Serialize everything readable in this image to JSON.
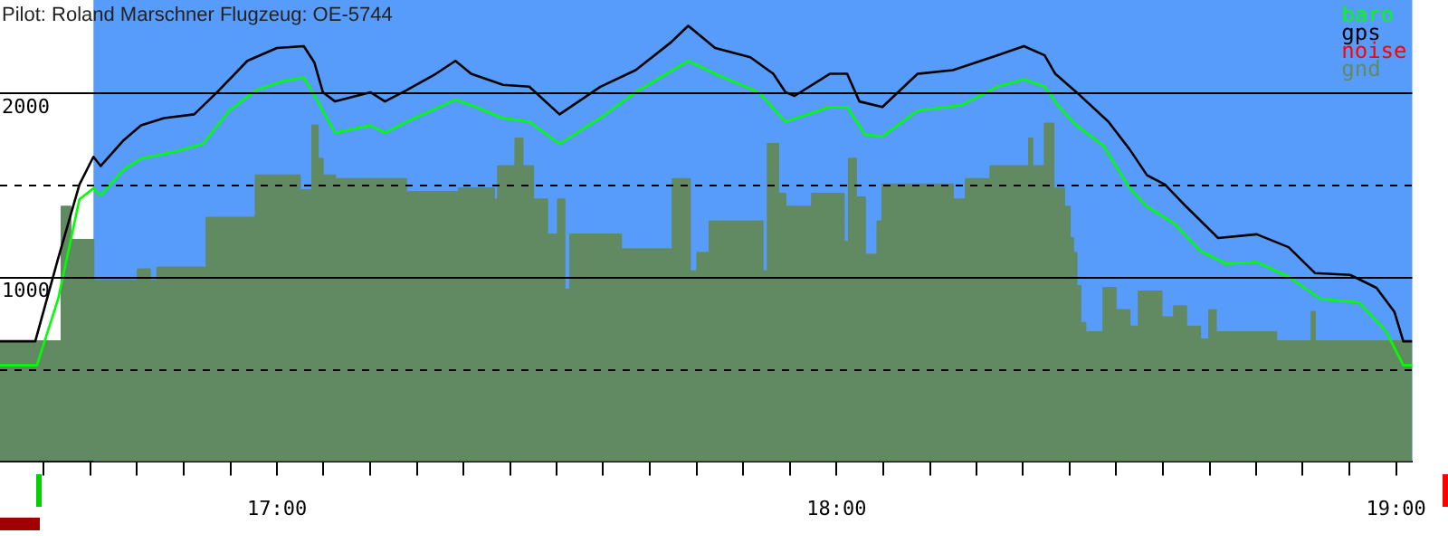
{
  "chart_data": {
    "type": "line",
    "title": "Pilot: Roland Marschner Flugzeug: OE-5744",
    "xlim": [
      16.505,
      19.029
    ],
    "xticks": [
      {
        "value": 16.583,
        "label": null
      },
      {
        "value": 16.667,
        "label": null
      },
      {
        "value": 16.75,
        "label": null
      },
      {
        "value": 16.833,
        "label": null
      },
      {
        "value": 16.917,
        "label": null
      },
      {
        "value": 17,
        "label": "17:00"
      },
      {
        "value": 17.083,
        "label": null
      },
      {
        "value": 17.167,
        "label": null
      },
      {
        "value": 17.25,
        "label": null
      },
      {
        "value": 17.333,
        "label": null
      },
      {
        "value": 17.417,
        "label": null
      },
      {
        "value": 17.5,
        "label": null
      },
      {
        "value": 17.583,
        "label": null
      },
      {
        "value": 17.667,
        "label": null
      },
      {
        "value": 17.75,
        "label": null
      },
      {
        "value": 17.833,
        "label": null
      },
      {
        "value": 17.917,
        "label": null
      },
      {
        "value": 18,
        "label": "18:00"
      },
      {
        "value": 18.083,
        "label": null
      },
      {
        "value": 18.167,
        "label": null
      },
      {
        "value": 18.25,
        "label": null
      },
      {
        "value": 18.333,
        "label": null
      },
      {
        "value": 18.417,
        "label": null
      },
      {
        "value": 18.5,
        "label": null
      },
      {
        "value": 18.583,
        "label": null
      },
      {
        "value": 18.667,
        "label": null
      },
      {
        "value": 18.75,
        "label": null
      },
      {
        "value": 18.833,
        "label": null
      },
      {
        "value": 18.917,
        "label": null
      },
      {
        "value": 19,
        "label": "19:00"
      }
    ],
    "ylim": [
      0,
      2500
    ],
    "yticks": [
      {
        "value": 500,
        "label": null
      },
      1000,
      {
        "value": 1500,
        "label": null
      },
      2000
    ],
    "grid": "y",
    "legend": "top right",
    "bands": [
      {
        "axis": "x",
        "from": 16.672,
        "to": 19.029,
        "label": null,
        "color": "#589cfb"
      }
    ],
    "series": [
      {
        "name": "baro",
        "color": "#00ff00",
        "x": [
          16.505,
          16.571,
          16.609,
          16.647,
          16.672,
          16.685,
          16.726,
          16.757,
          16.82,
          16.868,
          16.915,
          16.962,
          17.01,
          17.048,
          17.073,
          17.104,
          17.167,
          17.193,
          17.246,
          17.319,
          17.347,
          17.404,
          17.451,
          17.505,
          17.578,
          17.641,
          17.735,
          17.783,
          17.861,
          17.909,
          17.988,
          18.019,
          18.051,
          18.082,
          18.145,
          18.224,
          18.287,
          18.335,
          18.372,
          18.398,
          18.429,
          18.477,
          18.524,
          18.555,
          18.603,
          18.65,
          18.697,
          18.751,
          18.808,
          18.865,
          18.934,
          18.981,
          19.013,
          19.029
        ],
        "values": [
          520,
          520,
          880,
          1420,
          1480,
          1440,
          1580,
          1640,
          1680,
          1720,
          1900,
          2010,
          2060,
          2080,
          1950,
          1780,
          1820,
          1780,
          1860,
          1960,
          1930,
          1860,
          1840,
          1720,
          1860,
          2000,
          2170,
          2100,
          2000,
          1840,
          1920,
          1920,
          1770,
          1760,
          1900,
          1930,
          2030,
          2070,
          2030,
          1920,
          1820,
          1710,
          1480,
          1380,
          1290,
          1140,
          1070,
          1080,
          1000,
          880,
          860,
          710,
          520,
          520
        ]
      },
      {
        "name": "gps",
        "color": "#000000",
        "x": [
          16.505,
          16.568,
          16.609,
          16.647,
          16.672,
          16.685,
          16.726,
          16.757,
          16.798,
          16.852,
          16.893,
          16.947,
          17,
          17.048,
          17.067,
          17.082,
          17.104,
          17.167,
          17.193,
          17.231,
          17.284,
          17.319,
          17.347,
          17.404,
          17.451,
          17.505,
          17.578,
          17.641,
          17.704,
          17.735,
          17.783,
          17.846,
          17.887,
          17.909,
          17.925,
          17.988,
          18.019,
          18.041,
          18.082,
          18.145,
          18.208,
          18.287,
          18.335,
          18.372,
          18.391,
          18.429,
          18.486,
          18.524,
          18.555,
          18.587,
          18.625,
          18.682,
          18.751,
          18.808,
          18.855,
          18.918,
          18.965,
          18.997,
          19.013,
          19.029
        ],
        "values": [
          650,
          650,
          1100,
          1500,
          1650,
          1600,
          1740,
          1820,
          1860,
          1880,
          2000,
          2170,
          2240,
          2250,
          2160,
          2000,
          1950,
          2000,
          1950,
          2010,
          2100,
          2170,
          2100,
          2040,
          2030,
          1880,
          2030,
          2120,
          2270,
          2360,
          2240,
          2190,
          2100,
          2000,
          1980,
          2100,
          2100,
          1950,
          1920,
          2100,
          2120,
          2200,
          2250,
          2200,
          2100,
          2000,
          1840,
          1690,
          1550,
          1500,
          1380,
          1210,
          1230,
          1160,
          1020,
          1010,
          940,
          810,
          650,
          650
        ]
      },
      {
        "name": "noise",
        "color": "#ff0000"
      },
      {
        "name": "gnd",
        "color": "#628a62",
        "type": "area",
        "x": [
          16.505,
          16.615,
          16.615,
          16.631,
          16.631,
          16.672,
          16.672,
          16.751,
          16.751,
          16.773,
          16.773,
          16.786,
          16.786,
          16.874,
          16.874,
          16.962,
          16.962,
          17.041,
          17.041,
          17.063,
          17.063,
          17.073,
          17.073,
          17.082,
          17.082,
          17.104,
          17.104,
          17.231,
          17.231,
          17.325,
          17.325,
          17.388,
          17.388,
          17.395,
          17.395,
          17.426,
          17.426,
          17.439,
          17.439,
          17.458,
          17.458,
          17.483,
          17.483,
          17.502,
          17.502,
          17.514,
          17.514,
          17.524,
          17.524,
          17.615,
          17.615,
          17.707,
          17.707,
          17.738,
          17.738,
          17.751,
          17.751,
          17.773,
          17.773,
          17.868,
          17.868,
          17.877,
          17.877,
          17.896,
          17.896,
          17.909,
          17.909,
          17.956,
          17.956,
          18.013,
          18.013,
          18.022,
          18.022,
          18.035,
          18.035,
          18.051,
          18.051,
          18.073,
          18.073,
          18.082,
          18.082,
          18.208,
          18.208,
          18.231,
          18.231,
          18.275,
          18.275,
          18.344,
          18.344,
          18.35,
          18.35,
          18.372,
          18.372,
          18.388,
          18.388,
          18.407,
          18.407,
          18.417,
          18.417,
          18.423,
          18.423,
          18.429,
          18.429,
          18.436,
          18.436,
          18.445,
          18.445,
          18.477,
          18.477,
          18.499,
          18.499,
          18.524,
          18.524,
          18.54,
          18.54,
          18.581,
          18.581,
          18.603,
          18.603,
          18.625,
          18.625,
          18.65,
          18.65,
          18.666,
          18.666,
          18.678,
          18.678,
          18.786,
          18.786,
          18.849,
          18.849,
          18.855,
          18.855,
          19.029
        ],
        "values": [
          650,
          650,
          1380,
          1380,
          1200,
          1200,
          980,
          980,
          1040,
          1040,
          980,
          980,
          1050,
          1050,
          1320,
          1320,
          1550,
          1550,
          1470,
          1470,
          1820,
          1820,
          1640,
          1640,
          1550,
          1550,
          1530,
          1530,
          1460,
          1460,
          1480,
          1480,
          1420,
          1420,
          1600,
          1600,
          1750,
          1750,
          1600,
          1600,
          1420,
          1420,
          1230,
          1230,
          1420,
          1420,
          930,
          930,
          1230,
          1230,
          1150,
          1150,
          1530,
          1530,
          1030,
          1030,
          1130,
          1130,
          1300,
          1300,
          1030,
          1030,
          1720,
          1720,
          1450,
          1450,
          1380,
          1380,
          1450,
          1450,
          1190,
          1190,
          1640,
          1640,
          1430,
          1430,
          1120,
          1120,
          1300,
          1300,
          1500,
          1500,
          1420,
          1420,
          1530,
          1530,
          1600,
          1600,
          1750,
          1750,
          1600,
          1600,
          1830,
          1830,
          1480,
          1480,
          1380,
          1380,
          1210,
          1210,
          1130,
          1130,
          950,
          950,
          750,
          750,
          700,
          700,
          940,
          940,
          820,
          820,
          730,
          730,
          920,
          920,
          780,
          780,
          840,
          840,
          730,
          730,
          660,
          660,
          820,
          820,
          700,
          700,
          650,
          650,
          810,
          810,
          650,
          650
        ]
      }
    ]
  }
}
